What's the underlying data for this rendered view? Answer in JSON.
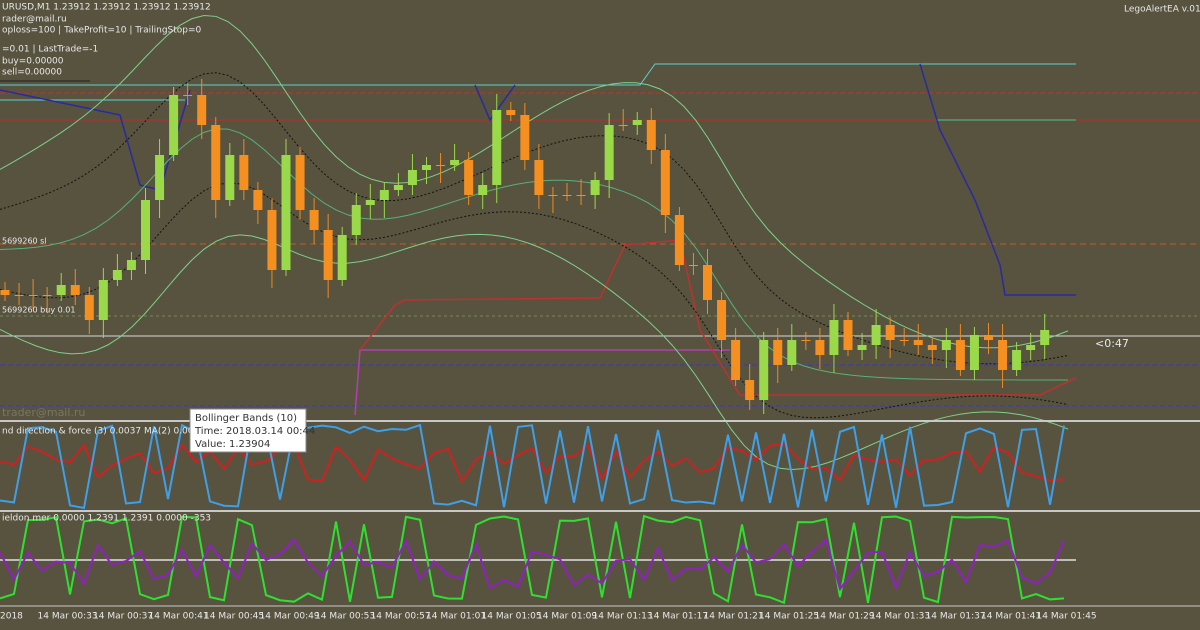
{
  "header": {
    "symbol_line": "URUSD,M1  1.23912 1.23912 1.23912 1.23912",
    "lines": [
      "rader@mail.ru",
      "oploss=100 | TakeProfit=10 | TrailingStop=0",
      "=0.01 | LastTrade=-1",
      "buy=0.00000",
      "sell=0.00000"
    ],
    "expert": "LegoAlertEA v.01"
  },
  "chart": {
    "level_labels": [
      "5699260 sl",
      "5699260 buy 0.01"
    ],
    "countdown": "<0:47",
    "watermark": "trader@mail.ru"
  },
  "tooltip": {
    "title": "Bollinger Bands (10)",
    "time": "Time: 2018.03.14 00:44",
    "value": "Value: 1.23904"
  },
  "panels": {
    "first": "nd direction & force (3) 0.0037   MA(2) 0.0000",
    "second": "ieldon mer 0.0000 1.2391 1.2391 0.0000 -353"
  },
  "time_axis": [
    "2018",
    "14 Mar 00:33",
    "14 Mar 00:37",
    "14 Mar 00:41",
    "14 Mar 00:45",
    "14 Mar 00:49",
    "14 Mar 00:53",
    "14 Mar 00:57",
    "14 Mar 01:01",
    "14 Mar 01:05",
    "14 Mar 01:09",
    "14 Mar 01:13",
    "14 Mar 01:17",
    "14 Mar 01:21",
    "14 Mar 01:25",
    "14 Mar 01:29",
    "14 Mar 01:33",
    "14 Mar 01:37",
    "14 Mar 01:41",
    "14 Mar 01:45"
  ]
}
